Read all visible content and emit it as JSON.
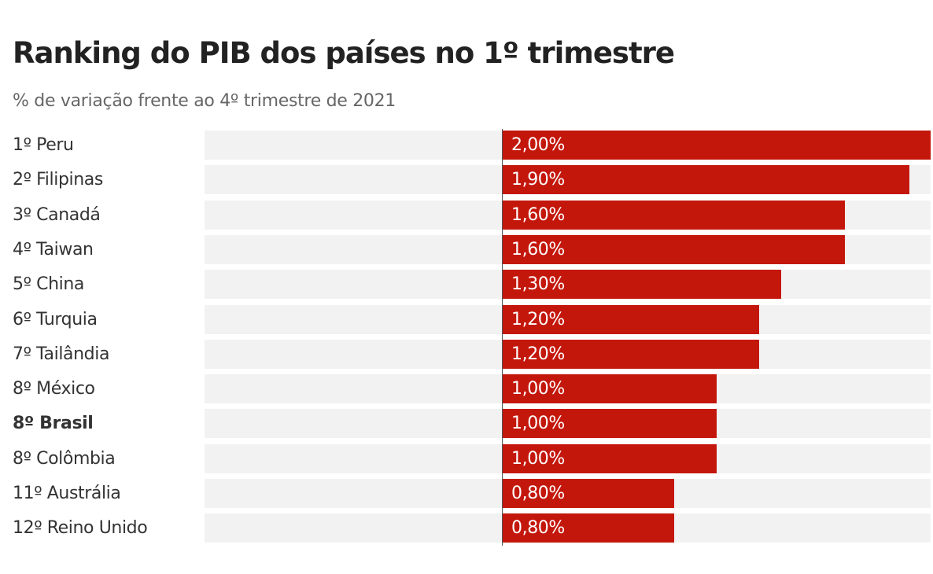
{
  "chart_data": {
    "type": "bar",
    "orientation": "horizontal",
    "title": "Ranking do PIB dos países no 1º trimestre",
    "subtitle": "% de variação frente ao 4º trimestre de 2021",
    "categories": [
      "1º Peru",
      "2º Filipinas",
      "3º Canadá",
      "4º Taiwan",
      "5º China",
      "6º Turquia",
      "7º Tailândia",
      "8º México",
      "8º Brasil",
      "8º Colômbia",
      "11º Austrália",
      "12º Reino Unido"
    ],
    "values": [
      2.0,
      1.9,
      1.6,
      1.6,
      1.3,
      1.2,
      1.2,
      1.0,
      1.0,
      1.0,
      0.8,
      0.8
    ],
    "value_labels": [
      "2,00%",
      "1,90%",
      "1,60%",
      "1,60%",
      "1,30%",
      "1,20%",
      "1,20%",
      "1,00%",
      "1,00%",
      "1,00%",
      "0,80%",
      "0,80%"
    ],
    "highlighted": "8º Brasil",
    "xlim": [
      -1.4,
      2.0
    ],
    "grid": false,
    "colors": {
      "bar": "#c4170c",
      "track": "#f2f2f2"
    }
  }
}
